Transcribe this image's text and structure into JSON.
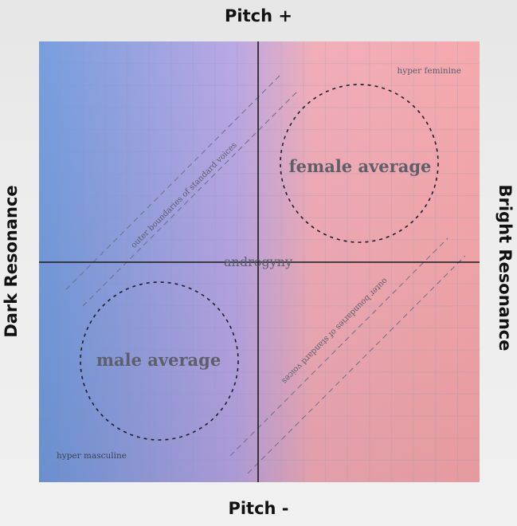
{
  "titles": {
    "top": "Pitch +",
    "bottom": "Pitch -",
    "left": "Dark Resonance",
    "right": "Bright Resonance"
  },
  "labels": {
    "female_average": "female average",
    "male_average": "male average",
    "androgyny": "androgyny",
    "hyper_feminine": "hyper feminine",
    "hyper_masculine": "hyper masculine",
    "boundary_upper": "outer boundaries of standard voices",
    "boundary_lower": "outer boundaries of standard voices"
  },
  "colors": {
    "masculine_blue": "#6f98dc",
    "neutral_lavender": "#b7a3e2",
    "feminine_pink": "#f4a4a8",
    "grid": "#8f95b4",
    "axis": "#1a1a1a",
    "label_text": "#5b5e6c"
  }
}
